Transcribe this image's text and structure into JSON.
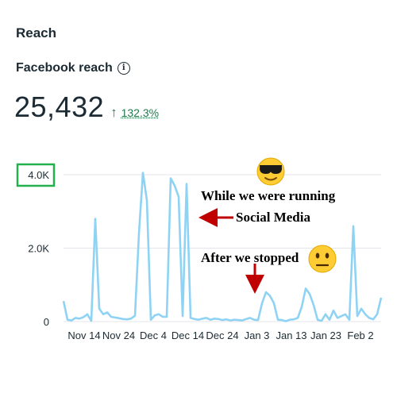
{
  "header": {
    "section_title": "Reach",
    "metric_label": "Facebook reach",
    "info_icon": "info-icon",
    "value": "25,432",
    "change_arrow": "↑",
    "change": "132.3%",
    "change_color": "#1f7a4a"
  },
  "annotations": {
    "running_line1": "While we were running",
    "running_line2": "Social Media",
    "stopped": "After we stopped",
    "arrow_color": "#c00000",
    "highlight_color": "#22b14c",
    "emoji_running": "sunglasses-face-emoji",
    "emoji_stopped": "neutral-face-emoji"
  },
  "chart_data": {
    "type": "line",
    "series_color": "#8fd3f4",
    "ylim": [
      0,
      4000
    ],
    "y_ticks": [
      0,
      2000,
      4000
    ],
    "y_tick_labels": [
      "0",
      "2.0K",
      "4.0K"
    ],
    "x_tick_labels": [
      "Nov 14",
      "Nov 24",
      "Dec 4",
      "Dec 14",
      "Dec 24",
      "Jan 3",
      "Jan 13",
      "Jan 23",
      "Feb 2"
    ],
    "grid": true,
    "legend": "none",
    "values": [
      560,
      50,
      30,
      100,
      80,
      120,
      200,
      20,
      2800,
      350,
      200,
      250,
      130,
      110,
      90,
      70,
      60,
      80,
      160,
      2400,
      4050,
      3300,
      50,
      170,
      200,
      130,
      130,
      3900,
      3700,
      3400,
      150,
      3750,
      100,
      70,
      50,
      80,
      100,
      50,
      80,
      70,
      40,
      60,
      30,
      50,
      40,
      30,
      70,
      100,
      50,
      40,
      500,
      800,
      700,
      500,
      50,
      40,
      10,
      50,
      60,
      100,
      400,
      900,
      750,
      450,
      50,
      20,
      200,
      50,
      300,
      100,
      150,
      200,
      50,
      2600,
      150,
      350,
      200,
      100,
      60,
      200,
      650
    ]
  }
}
